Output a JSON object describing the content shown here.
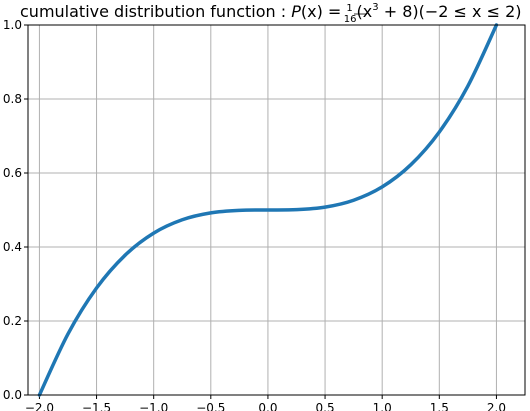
{
  "chart_data": {
    "type": "line",
    "title": {
      "prefix": "cumulative distribution function : ",
      "func_name": "P",
      "func_arg": "(x)",
      "equals": " = ",
      "frac_num": "1",
      "frac_den": "16",
      "body_open": "(x",
      "body_exp": "3",
      "body_close": " + 8)(−2 ≤ x ≤ 2)"
    },
    "formula": "P(x) = (x^3 + 8) / 16",
    "xlabel": "",
    "ylabel": "",
    "xlim": [
      -2.1,
      2.25
    ],
    "ylim": [
      0,
      1.0
    ],
    "grid": true,
    "x_ticks": [
      -2.0,
      -1.5,
      -1.0,
      -0.5,
      0.0,
      0.5,
      1.0,
      1.5,
      2.0
    ],
    "x_tick_labels": [
      "−2.0",
      "−1.5",
      "−1.0",
      "−0.5",
      "0.0",
      "0.5",
      "1.0",
      "1.5",
      "2.0"
    ],
    "y_ticks": [
      0.0,
      0.2,
      0.4,
      0.6,
      0.8,
      1.0
    ],
    "y_tick_labels": [
      "0.0",
      "0.2",
      "0.4",
      "0.6",
      "0.8",
      "1.0"
    ],
    "series": [
      {
        "color": "#1f77b4",
        "x": [
          -2.0,
          -1.75,
          -1.5,
          -1.25,
          -1.0,
          -0.75,
          -0.5,
          -0.25,
          0.0,
          0.25,
          0.5,
          0.75,
          1.0,
          1.25,
          1.5,
          1.75,
          2.0
        ],
        "y": [
          0.0,
          0.165,
          0.2891,
          0.3779,
          0.4375,
          0.4736,
          0.4922,
          0.499,
          0.5,
          0.501,
          0.5078,
          0.5264,
          0.5625,
          0.6221,
          0.7109,
          0.835,
          1.0
        ]
      }
    ]
  }
}
